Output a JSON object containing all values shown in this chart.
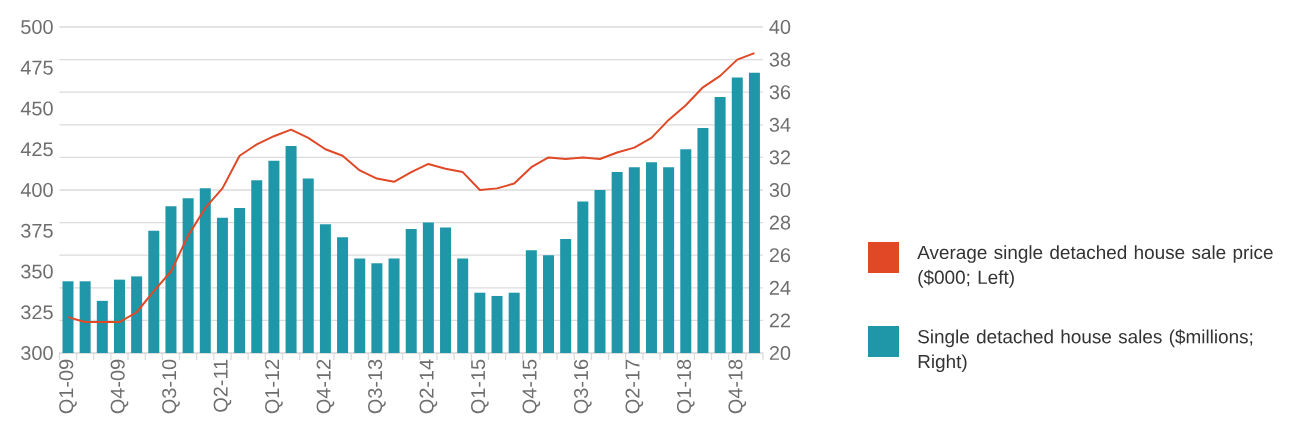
{
  "chart_data": {
    "type": "bar",
    "categories": [
      "Q1-09",
      null,
      null,
      "Q4-09",
      null,
      null,
      "Q3-10",
      null,
      null,
      "Q2-11",
      null,
      null,
      "Q1-12",
      null,
      null,
      "Q4-12",
      null,
      null,
      "Q3-13",
      null,
      null,
      "Q2-14",
      null,
      null,
      "Q1-15",
      null,
      null,
      "Q4-15",
      null,
      null,
      "Q3-16",
      null,
      null,
      "Q2-17",
      null,
      null,
      "Q1-18",
      null,
      null,
      "Q4-18",
      null
    ],
    "series": [
      {
        "name": "Average single detached house sale price ($000; Left)",
        "type": "line",
        "color": "#e04826",
        "values": [
          322,
          319,
          319,
          319,
          325,
          338,
          350,
          372,
          389,
          401,
          421,
          428,
          433,
          437,
          432,
          425,
          421,
          412,
          407,
          405,
          411,
          416,
          413,
          411,
          400,
          401,
          404,
          414,
          420,
          419,
          420,
          419,
          423,
          426,
          432,
          443,
          452,
          463,
          470,
          480,
          484
        ]
      },
      {
        "name": "Single detached house sales ($millions; Right)",
        "axis": "y2",
        "color": "#2097a9",
        "values": [
          24.4,
          24.4,
          23.2,
          24.5,
          24.7,
          27.5,
          29.0,
          29.5,
          30.1,
          28.3,
          28.9,
          30.6,
          31.8,
          32.7,
          30.7,
          27.9,
          27.1,
          25.8,
          25.5,
          25.8,
          27.6,
          28.0,
          27.7,
          25.8,
          23.7,
          23.5,
          23.7,
          26.3,
          26.0,
          27.0,
          29.3,
          30.0,
          31.1,
          31.4,
          31.7,
          31.4,
          32.5,
          33.8,
          35.7,
          36.9,
          37.2
        ]
      }
    ],
    "ylim": [
      300,
      500
    ],
    "yticks": [
      300,
      325,
      350,
      375,
      400,
      425,
      450,
      475,
      500
    ],
    "y2lim": [
      20,
      40
    ],
    "y2ticks": [
      20,
      22,
      24,
      26,
      28,
      30,
      32,
      34,
      36,
      38,
      40
    ],
    "grid": "y",
    "legend": "right"
  }
}
